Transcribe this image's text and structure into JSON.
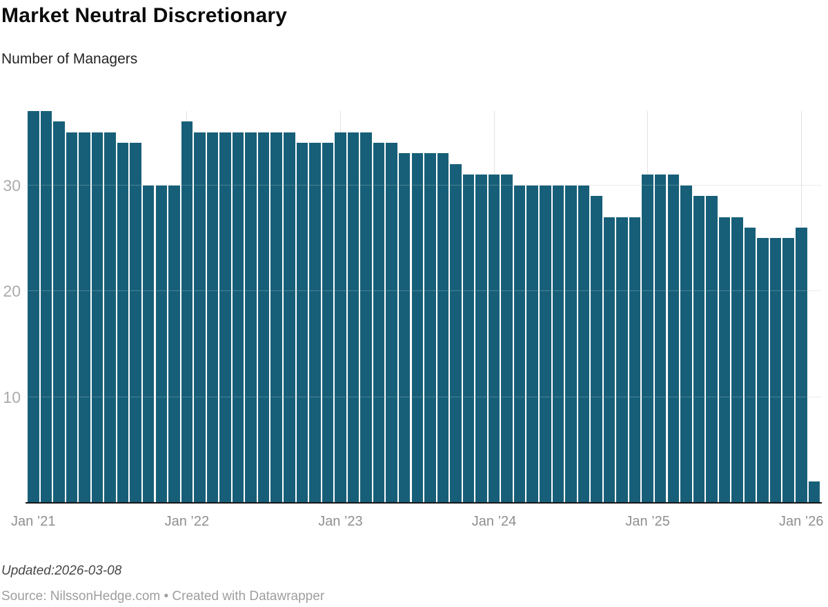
{
  "header": {
    "title": "Market Neutral Discretionary",
    "subtitle": "Number of Managers"
  },
  "footer": {
    "updated": "Updated:2026-03-08",
    "source": "Source: NilssonHedge.com • Created with Datawrapper"
  },
  "chart_data": {
    "type": "bar",
    "title": "Market Neutral Discretionary",
    "subtitle": "Number of Managers",
    "ylabel": "Number of Managers",
    "xlabel": "",
    "bar_color": "#175f78",
    "grid": "horizontal lines at 10/20/30, vertical lines at each January",
    "legend": "none",
    "ylim": [
      0,
      37
    ],
    "y_ticks": [
      10,
      20,
      30
    ],
    "x_ticks": [
      {
        "label": "Jan ’21",
        "month_index": 0,
        "gridline": false
      },
      {
        "label": "Jan ’22",
        "month_index": 12,
        "gridline": true
      },
      {
        "label": "Jan ’23",
        "month_index": 24,
        "gridline": true
      },
      {
        "label": "Jan ’24",
        "month_index": 36,
        "gridline": true
      },
      {
        "label": "Jan ’25",
        "month_index": 48,
        "gridline": true
      },
      {
        "label": "Jan ’26",
        "month_index": 60,
        "gridline": true
      }
    ],
    "x": [
      "2021-01",
      "2021-02",
      "2021-03",
      "2021-04",
      "2021-05",
      "2021-06",
      "2021-07",
      "2021-08",
      "2021-09",
      "2021-10",
      "2021-11",
      "2021-12",
      "2022-01",
      "2022-02",
      "2022-03",
      "2022-04",
      "2022-05",
      "2022-06",
      "2022-07",
      "2022-08",
      "2022-09",
      "2022-10",
      "2022-11",
      "2022-12",
      "2023-01",
      "2023-02",
      "2023-03",
      "2023-04",
      "2023-05",
      "2023-06",
      "2023-07",
      "2023-08",
      "2023-09",
      "2023-10",
      "2023-11",
      "2023-12",
      "2024-01",
      "2024-02",
      "2024-03",
      "2024-04",
      "2024-05",
      "2024-06",
      "2024-07",
      "2024-08",
      "2024-09",
      "2024-10",
      "2024-11",
      "2024-12",
      "2025-01",
      "2025-02",
      "2025-03",
      "2025-04",
      "2025-05",
      "2025-06",
      "2025-07",
      "2025-08",
      "2025-09",
      "2025-10",
      "2025-11",
      "2025-12",
      "2026-01",
      "2026-02"
    ],
    "values": [
      37,
      37,
      36,
      35,
      35,
      35,
      35,
      34,
      34,
      30,
      30,
      30,
      36,
      35,
      35,
      35,
      35,
      35,
      35,
      35,
      35,
      34,
      34,
      34,
      35,
      35,
      35,
      34,
      34,
      33,
      33,
      33,
      33,
      32,
      31,
      31,
      31,
      31,
      30,
      30,
      30,
      30,
      30,
      30,
      29,
      27,
      27,
      27,
      31,
      31,
      31,
      30,
      29,
      29,
      27,
      27,
      26,
      25,
      25,
      25,
      26,
      2
    ]
  }
}
